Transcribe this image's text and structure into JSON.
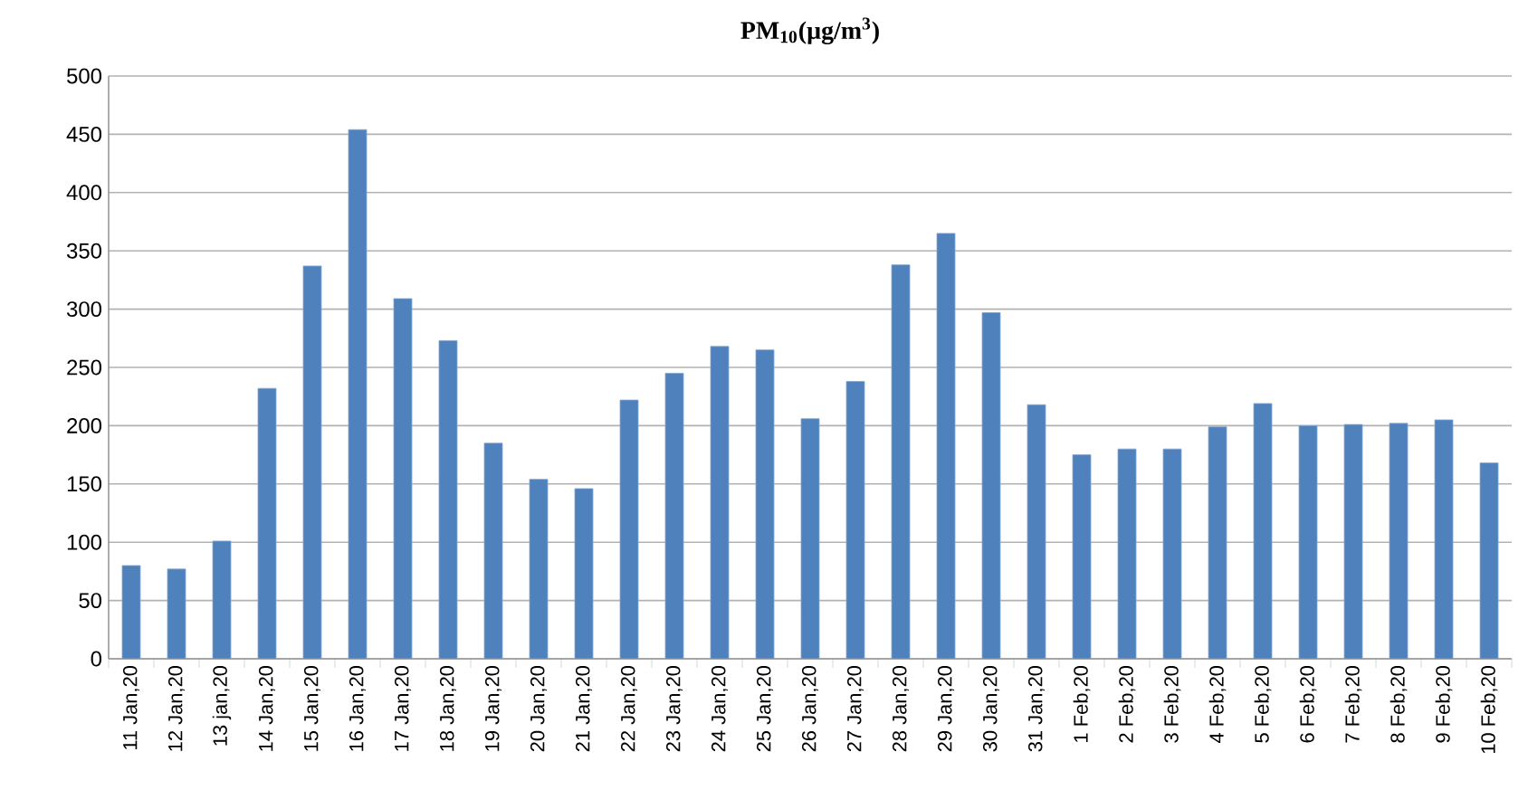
{
  "chart_data": {
    "type": "bar",
    "title": "**PM$_{10}$(µg/m$^{3}$)**",
    "categories": [
      "11 Jan,20",
      "12 Jan,20",
      "13 jan,20",
      "14 Jan,20",
      "15 Jan,20",
      "16 Jan,20",
      "17 Jan,20",
      "18 Jan,20",
      "19 Jan,20",
      "20 Jan,20",
      "21 Jan,20",
      "22 Jan,20",
      "23 Jan,20",
      "24 Jan,20",
      "25 Jan,20",
      "26 Jan,20",
      "27 Jan,20",
      "28 Jan,20",
      "29 Jan,20",
      "30 Jan,20",
      "31 Jan,20",
      "1 Feb,20",
      "2 Feb,20",
      "3 Feb,20",
      "4 Feb,20",
      "5 Feb,20",
      "6 Feb,20",
      "7 Feb,20",
      "8 Feb,20",
      "9 Feb,20",
      "10 Feb,20"
    ],
    "values": [
      80,
      77,
      101,
      232,
      337,
      454,
      309,
      273,
      185,
      154,
      146,
      222,
      245,
      268,
      265,
      206,
      238,
      338,
      365,
      297,
      218,
      175,
      180,
      180,
      199,
      219,
      200,
      201,
      202,
      205,
      168
    ],
    "color": "#4f81bd",
    "ylim": [
      0,
      500
    ],
    "yticks": [
      0,
      50,
      100,
      150,
      200,
      250,
      300,
      350,
      400,
      450,
      500
    ],
    "grid": "y"
  }
}
